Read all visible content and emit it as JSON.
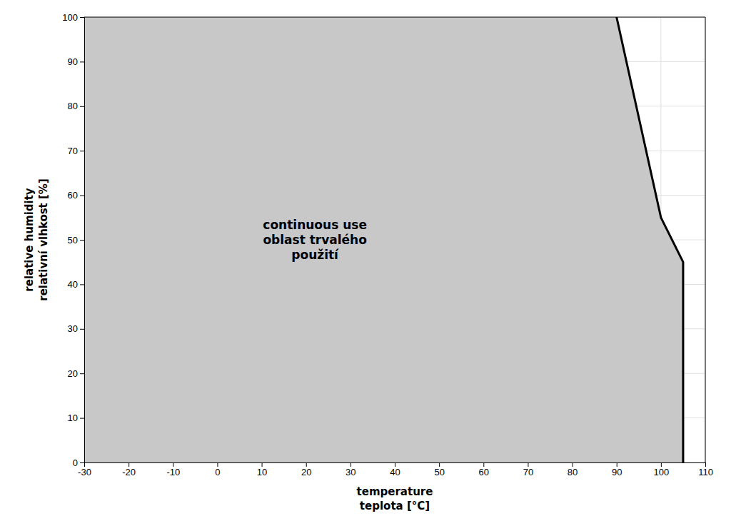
{
  "chart_data": {
    "type": "area",
    "series": [
      {
        "type": "area",
        "x": [
          -30,
          90,
          100,
          105,
          105,
          -30
        ],
        "values": [
          100,
          100,
          55,
          45,
          0,
          0
        ],
        "color": "#c8c8c8"
      },
      {
        "type": "line",
        "x": [
          90,
          100,
          105,
          105
        ],
        "values": [
          100,
          55,
          45,
          0
        ],
        "color": "#000000"
      }
    ],
    "xlabel": [
      "temperature",
      "teplota [°C]"
    ],
    "ylabel": [
      "relative humidity",
      "relativní vlhkost [%]"
    ],
    "annotations": [
      {
        "x": 22,
        "y": 50,
        "text": [
          "continuous use",
          "oblast trvalého",
          "použití"
        ]
      }
    ],
    "xlim": [
      -30,
      110
    ],
    "ylim": [
      0,
      100
    ],
    "xticks": [
      -30,
      -20,
      -10,
      0,
      10,
      20,
      30,
      40,
      50,
      60,
      70,
      80,
      90,
      100,
      110
    ],
    "yticks": [
      0,
      10,
      20,
      30,
      40,
      50,
      60,
      70,
      80,
      90,
      100
    ],
    "grid": true
  }
}
